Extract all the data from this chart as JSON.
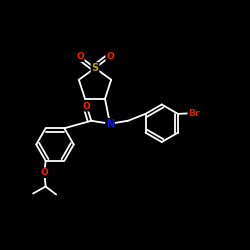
{
  "bg_color": "#000000",
  "bond_color": "#ffffff",
  "atom_colors": {
    "O": "#ff2200",
    "S": "#bbaa00",
    "N": "#1111ff",
    "Br": "#cc2200",
    "C": "#ffffff"
  },
  "lw": 1.3,
  "lw_thick": 1.5
}
